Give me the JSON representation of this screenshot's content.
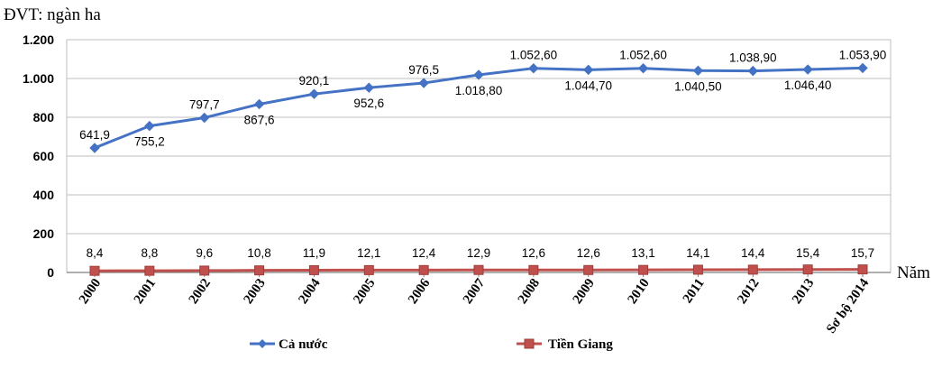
{
  "chart_data": {
    "type": "line",
    "unit_label": "ĐVT: ngàn ha",
    "xlabel": "Năm",
    "ylabel": "",
    "title": "",
    "ylim": [
      0,
      1200
    ],
    "yticks": [
      0,
      200,
      400,
      600,
      800,
      1000,
      1200
    ],
    "ytick_labels": [
      "0",
      "200",
      "400",
      "600",
      "800",
      "1.000",
      "1.200"
    ],
    "grid": true,
    "legend_position": "bottom",
    "categories": [
      "2000",
      "2001",
      "2002",
      "2003",
      "2004",
      "2005",
      "2006",
      "2007",
      "2008",
      "2009",
      "2010",
      "2011",
      "2012",
      "2013",
      "Sơ bộ 2014"
    ],
    "series": [
      {
        "name": "Cả nước",
        "color": "#4472C4",
        "marker": "diamond",
        "values": [
          641.9,
          755.2,
          797.7,
          867.6,
          920.1,
          952.6,
          976.5,
          1018.8,
          1052.6,
          1044.7,
          1052.6,
          1040.5,
          1038.9,
          1046.4,
          1053.9
        ],
        "labels": [
          "641,9",
          "755,2",
          "797,7",
          "867,6",
          "920,1",
          "952,6",
          "976,5",
          "1.018,80",
          "1.052,60",
          "1.044,70",
          "1.052,60",
          "1.040,50",
          "1.038,90",
          "1.046,40",
          "1.053,90"
        ],
        "label_positions": [
          "above",
          "below",
          "above",
          "below",
          "above",
          "below",
          "above",
          "below",
          "above",
          "below",
          "above",
          "below",
          "above",
          "below",
          "above"
        ]
      },
      {
        "name": "Tiền Giang",
        "color": "#C0504D",
        "marker": "square",
        "values": [
          8.4,
          8.8,
          9.6,
          10.8,
          11.9,
          12.1,
          12.4,
          12.9,
          12.6,
          12.6,
          13.1,
          14.1,
          14.4,
          15.4,
          15.7
        ],
        "labels": [
          "8,4",
          "8,8",
          "9,6",
          "10,8",
          "11,9",
          "12,1",
          "12,4",
          "12,9",
          "12,6",
          "12,6",
          "13,1",
          "14,1",
          "14,4",
          "15,4",
          "15,7"
        ],
        "label_positions": [
          "above",
          "above",
          "above",
          "above",
          "above",
          "above",
          "above",
          "above",
          "above",
          "above",
          "above",
          "above",
          "above",
          "above",
          "above"
        ]
      }
    ]
  }
}
